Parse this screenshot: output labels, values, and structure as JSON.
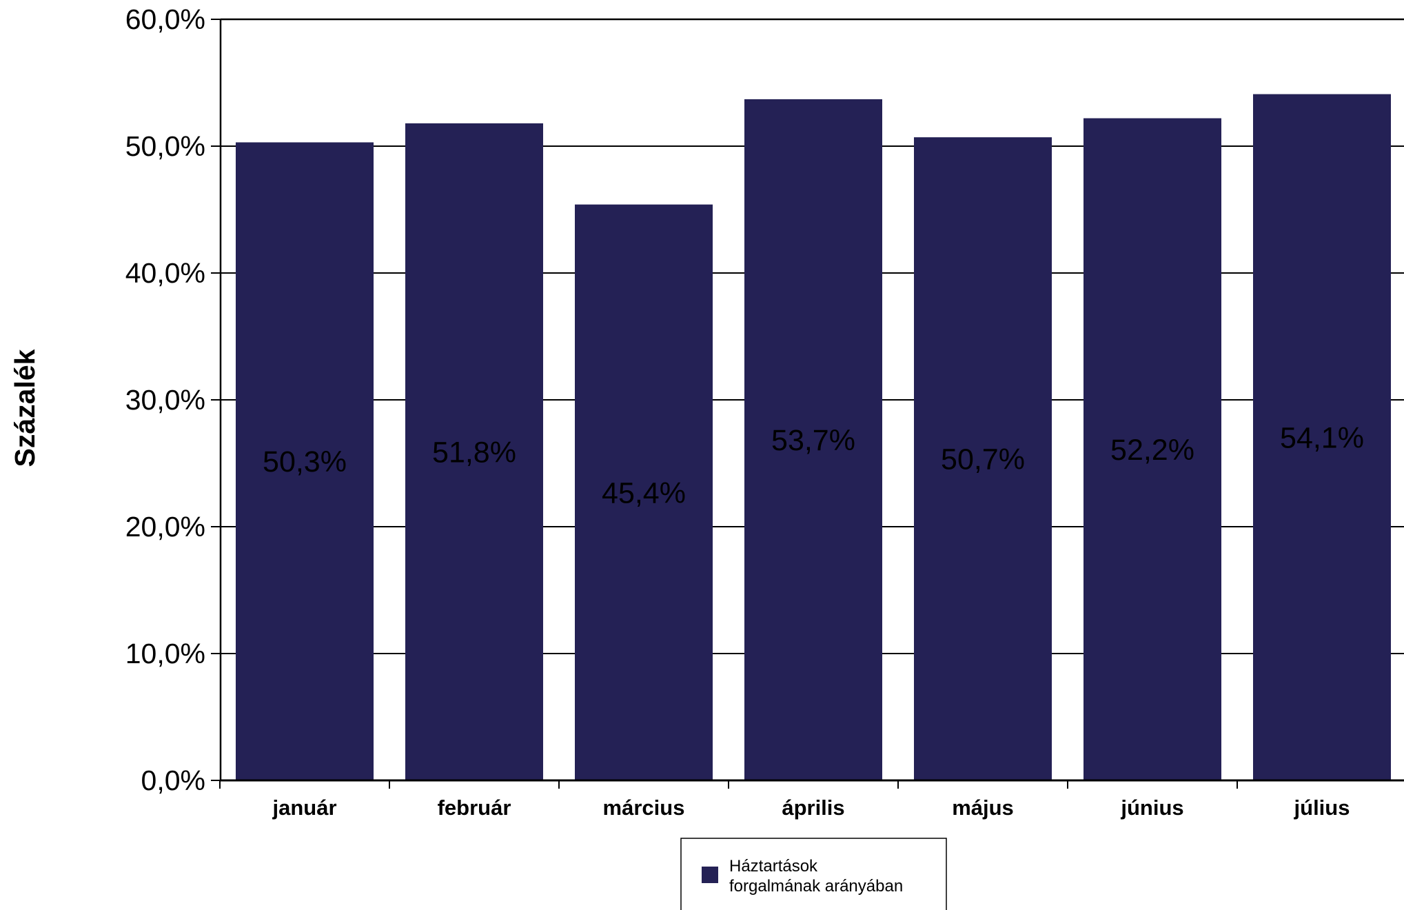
{
  "chart_data": {
    "type": "bar",
    "categories": [
      "január",
      "február",
      "március",
      "április",
      "május",
      "június",
      "július"
    ],
    "series": [
      {
        "name": "Háztartások forgalmának arányában",
        "legend_lines": [
          "Háztartások",
          "forgalmának arányában"
        ],
        "values": [
          50.3,
          51.8,
          45.4,
          53.7,
          50.7,
          52.2,
          54.1
        ],
        "data_labels": [
          "50,3%",
          "51,8%",
          "45,4%",
          "53,7%",
          "50,7%",
          "52,2%",
          "54,1%"
        ],
        "color": "#242155"
      }
    ],
    "ylabel": "Százalék",
    "xlabel": "",
    "ylim": [
      0,
      60
    ],
    "yticks": [
      0,
      10,
      20,
      30,
      40,
      50,
      60
    ],
    "ytick_labels": [
      "0,0%",
      "10,0%",
      "20,0%",
      "30,0%",
      "40,0%",
      "50,0%",
      "60,0%"
    ],
    "grid": true,
    "legend_position": "bottom"
  }
}
